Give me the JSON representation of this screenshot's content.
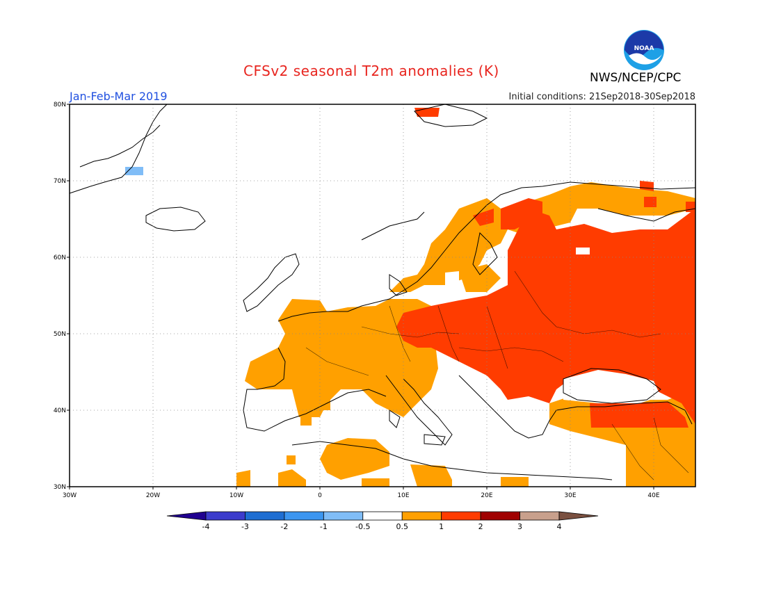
{
  "title": "CFSv2 seasonal T2m anomalies (K)",
  "period": "Jan-Feb-Mar 2019",
  "initial_conditions": "Initial conditions: 21Sep2018-30Sep2018",
  "agency": "NWS/NCEP/CPC",
  "logo_text": "NOAA",
  "lat_ticks": [
    "30N",
    "40N",
    "50N",
    "60N",
    "70N",
    "80N"
  ],
  "lon_ticks": [
    "30W",
    "20W",
    "10W",
    "0",
    "10E",
    "20E",
    "30E",
    "40E"
  ],
  "colorbar": {
    "labels": [
      "-4",
      "-3",
      "-2",
      "-1",
      "-0.5",
      "0.5",
      "1",
      "2",
      "3",
      "4"
    ],
    "colors": [
      "#200090",
      "#3c3ccc",
      "#1e6ed2",
      "#3c96f0",
      "#80bdf7",
      "#ffffff",
      "#ffa000",
      "#ff3c00",
      "#a00000",
      "#c8a08c",
      "#7a5040"
    ]
  },
  "colors": {
    "anomaly_0_5_to_1": "#ffa000",
    "anomaly_1_to_2": "#ff3c00",
    "anomaly_minus_1_to_minus_0_5": "#80bdf7",
    "deep_red": "#e83000"
  }
}
